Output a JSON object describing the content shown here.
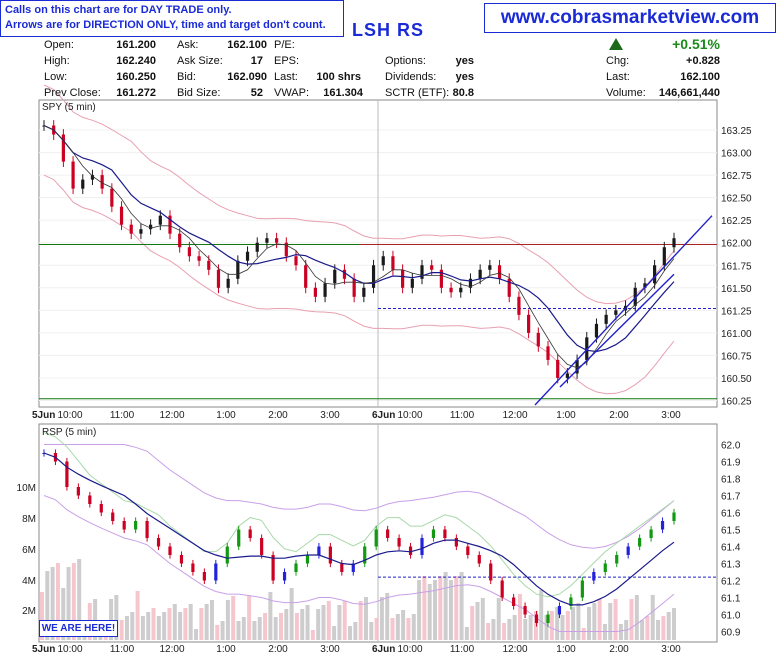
{
  "notice": {
    "line1": "Calls on this chart are for DAY TRADE only.",
    "line2": "Arrows are for DIRECTION ONLY, time and target don't count."
  },
  "site": "www.cobrasmarketview.com",
  "ticker": "LSH RS",
  "quote": {
    "open_label": "Open:",
    "open": "161.200",
    "high_label": "High:",
    "high": "162.240",
    "low_label": "Low:",
    "low": "160.250",
    "prevclose_label": "Prev Close:",
    "prevclose": "161.272",
    "ask_label": "Ask:",
    "ask": "162.100",
    "asksize_label": "Ask Size:",
    "asksize": "17",
    "bid_label": "Bid:",
    "bid": "162.090",
    "bidsize_label": "Bid Size:",
    "bidsize": "52",
    "pe_label": "P/E:",
    "eps_label": "EPS:",
    "last_label": "Last:",
    "last": "100 shrs",
    "vwap_label": "VWAP:",
    "vwap": "161.304",
    "options_label": "Options:",
    "options": "yes",
    "dividends_label": "Dividends:",
    "dividends": "yes",
    "sctr_label": "SCTR (ETF):",
    "sctr": "80.8",
    "pct": "+0.51%",
    "chg_label": "Chg:",
    "chg": "+0.828",
    "last2_label": "Last:",
    "last2": "162.100",
    "volume_label": "Volume:",
    "volume": "146,661,440"
  },
  "top_panel_label": "SPY (5 min)",
  "bottom_panel_label": "RSP (5 min)",
  "here_label": "WE ARE HERE!",
  "colors": {
    "up": "#1a1a1a",
    "down": "#cc0022",
    "ma": "#1a1a8c",
    "bands": "#e8a0b0",
    "trend": "#2222cc",
    "hline_green": "#117711",
    "hline_red": "#aa2222",
    "rsp_green": "#119911",
    "rsp_blue": "#2222dd"
  },
  "chart_data": [
    {
      "type": "candlestick",
      "title": "SPY (5 min)",
      "ylim": [
        160.2,
        163.45
      ],
      "y_ticks": [
        "163.25",
        "163.00",
        "162.75",
        "162.50",
        "162.25",
        "162.00",
        "161.75",
        "161.50",
        "161.25",
        "161.00",
        "160.75",
        "160.50",
        "160.25"
      ],
      "x_ticks": [
        "5Jun",
        "10:00",
        "11:00",
        "12:00",
        "1:00",
        "2:00",
        "3:00",
        "6Jun",
        "10:00",
        "11:00",
        "12:00",
        "1:00",
        "2:00",
        "3:00"
      ],
      "horizontal_lines": [
        {
          "value": 161.98,
          "style": "solid"
        },
        {
          "value": 160.27,
          "style": "solid"
        },
        {
          "value": 161.27,
          "style": "dashed"
        }
      ],
      "close_path": [
        163.3,
        163.2,
        162.9,
        162.6,
        162.7,
        162.75,
        162.6,
        162.4,
        162.2,
        162.1,
        162.15,
        162.2,
        162.3,
        162.1,
        161.95,
        161.85,
        161.8,
        161.7,
        161.5,
        161.6,
        161.8,
        161.9,
        162.0,
        162.05,
        162.0,
        161.85,
        161.75,
        161.5,
        161.4,
        161.55,
        161.7,
        161.6,
        161.4,
        161.5,
        161.75,
        161.85,
        161.7,
        161.5,
        161.6,
        161.75,
        161.7,
        161.5,
        161.45,
        161.5,
        161.6,
        161.7,
        161.75,
        161.6,
        161.4,
        161.2,
        161.0,
        160.85,
        160.7,
        160.5,
        160.55,
        160.7,
        160.95,
        161.1,
        161.2,
        161.25,
        161.3,
        161.5,
        161.55,
        161.75,
        161.95,
        162.05
      ]
    },
    {
      "type": "candlestick",
      "title": "RSP (5 min)",
      "ylim": [
        60.85,
        62.05
      ],
      "y_ticks": [
        "62.0",
        "61.9",
        "61.8",
        "61.7",
        "61.6",
        "61.5",
        "61.4",
        "61.3",
        "61.2",
        "61.1",
        "61.0",
        "60.9"
      ],
      "volume_ticks": [
        "10M",
        "8M",
        "6M",
        "4M",
        "2M"
      ],
      "x_ticks": [
        "5Jun",
        "10:00",
        "11:00",
        "12:00",
        "1:00",
        "2:00",
        "3:00",
        "6Jun",
        "10:00",
        "11:00",
        "12:00",
        "1:00",
        "2:00",
        "3:00"
      ],
      "horizontal_lines": [
        {
          "value": 61.22,
          "style": "dashed"
        }
      ],
      "close_path": [
        61.95,
        61.9,
        61.75,
        61.7,
        61.65,
        61.6,
        61.55,
        61.5,
        61.55,
        61.45,
        61.4,
        61.35,
        61.3,
        61.25,
        61.2,
        61.3,
        61.4,
        61.5,
        61.45,
        61.35,
        61.2,
        61.25,
        61.3,
        61.35,
        61.4,
        61.3,
        61.25,
        61.3,
        61.4,
        61.5,
        61.45,
        61.4,
        61.35,
        61.45,
        61.5,
        61.45,
        61.4,
        61.35,
        61.3,
        61.2,
        61.1,
        61.05,
        61.0,
        60.95,
        61.0,
        61.05,
        61.1,
        61.2,
        61.25,
        61.3,
        61.35,
        61.4,
        61.45,
        61.5,
        61.55,
        61.6
      ]
    }
  ]
}
